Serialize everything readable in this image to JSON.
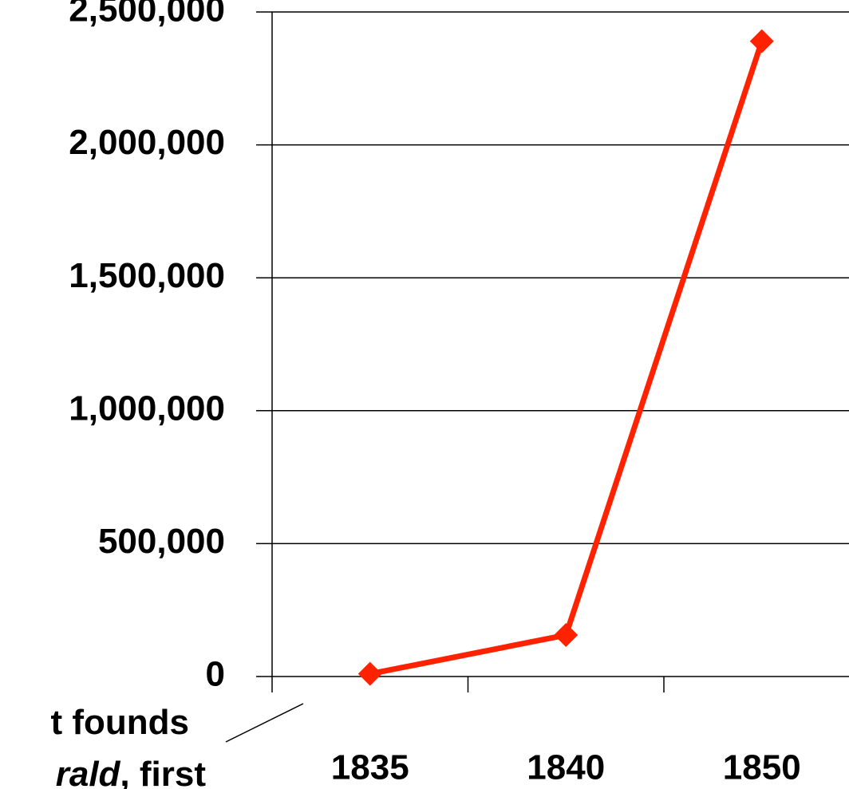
{
  "chart_data": {
    "type": "line",
    "categories": [
      "1835",
      "1840",
      "1850"
    ],
    "series": [
      {
        "color": "#ff2200",
        "values": [
          10000,
          156000,
          2390000
        ]
      }
    ],
    "ylim": [
      0,
      2500000
    ],
    "yticks": [
      0,
      {
        "value": 500000,
        "label": "500,000"
      },
      {
        "value": 1000000,
        "label": "1,000,000"
      },
      {
        "value": 1500000,
        "label": "1,500,000"
      },
      {
        "value": 2000000,
        "label": "2,000,000"
      },
      {
        "value": 2500000,
        "label": "2,500,000"
      }
    ],
    "grid": true,
    "annotation": {
      "line1": "t founds",
      "line2_italic": "rald",
      "line2_rest": ", first"
    }
  }
}
